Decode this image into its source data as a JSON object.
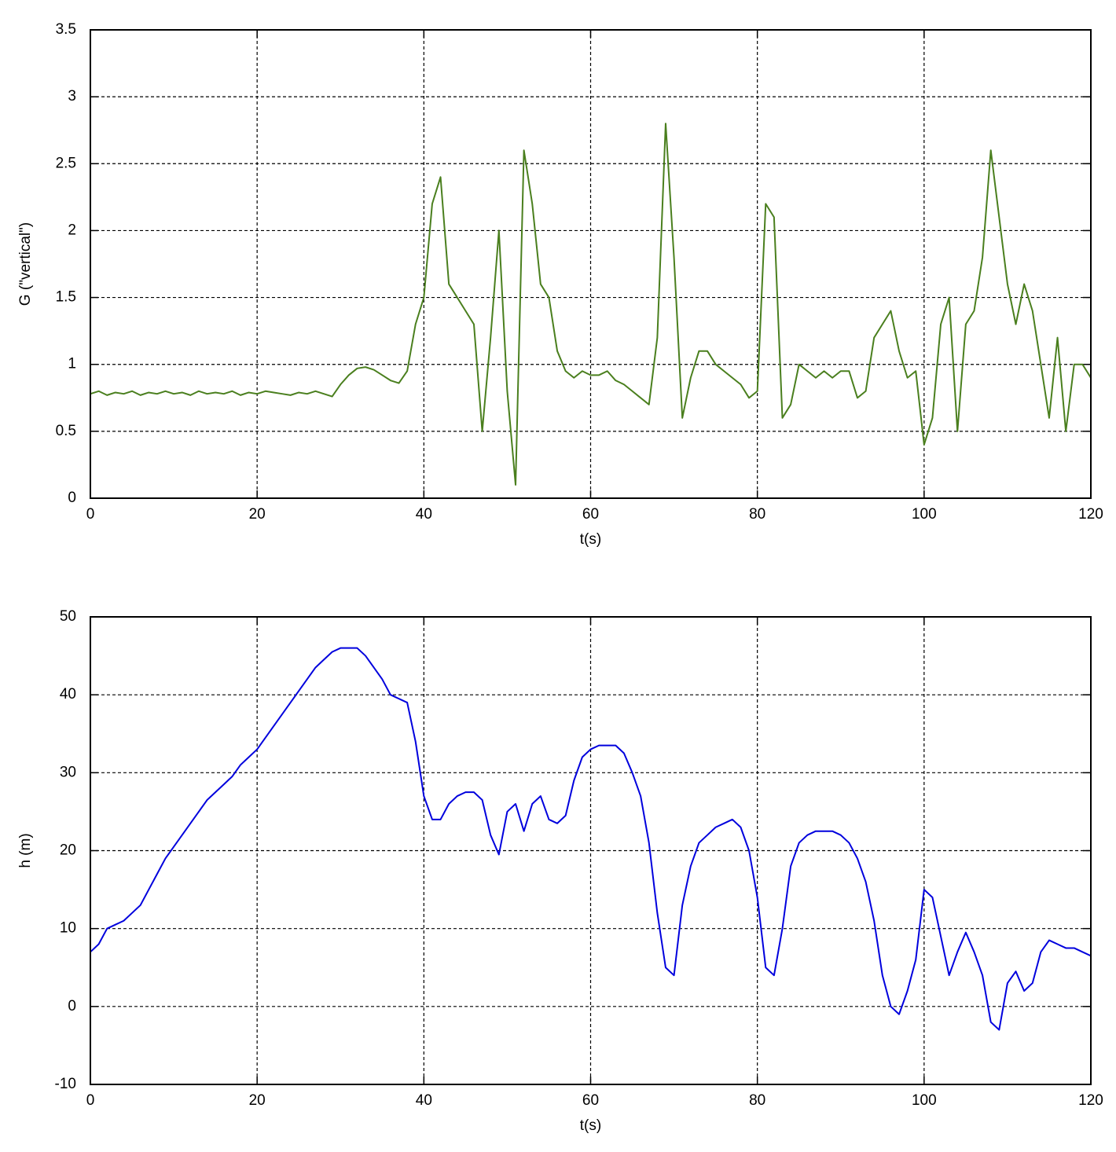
{
  "chart_data": [
    {
      "type": "line",
      "ylabel": "G (\"vertical\")",
      "xlabel": "t(s)",
      "x": [
        0,
        1,
        2,
        3,
        4,
        5,
        6,
        7,
        8,
        9,
        10,
        11,
        12,
        13,
        14,
        15,
        16,
        17,
        18,
        19,
        20,
        21,
        22,
        23,
        24,
        25,
        26,
        27,
        28,
        29,
        30,
        31,
        32,
        33,
        34,
        35,
        36,
        37,
        38,
        39,
        40,
        41,
        42,
        43,
        44,
        45,
        46,
        47,
        48,
        49,
        50,
        51,
        52,
        53,
        54,
        55,
        56,
        57,
        58,
        59,
        60,
        61,
        62,
        63,
        64,
        65,
        66,
        67,
        68,
        69,
        70,
        71,
        72,
        73,
        74,
        75,
        76,
        77,
        78,
        79,
        80,
        81,
        82,
        83,
        84,
        85,
        86,
        87,
        88,
        89,
        90,
        91,
        92,
        93,
        94,
        95,
        96,
        97,
        98,
        99,
        100,
        101,
        102,
        103,
        104,
        105,
        106,
        107,
        108,
        109,
        110,
        111,
        112,
        113,
        114,
        115,
        116,
        117,
        118,
        119,
        120
      ],
      "series": [
        {
          "color": "#4a7f1e",
          "values": [
            0.78,
            0.8,
            0.77,
            0.79,
            0.78,
            0.8,
            0.77,
            0.79,
            0.78,
            0.8,
            0.78,
            0.79,
            0.77,
            0.8,
            0.78,
            0.79,
            0.78,
            0.8,
            0.77,
            0.79,
            0.78,
            0.8,
            0.79,
            0.78,
            0.77,
            0.79,
            0.78,
            0.8,
            0.78,
            0.76,
            0.85,
            0.92,
            0.97,
            0.98,
            0.96,
            0.92,
            0.88,
            0.86,
            0.95,
            1.3,
            1.5,
            2.2,
            2.4,
            1.6,
            1.5,
            1.4,
            1.3,
            0.5,
            1.2,
            2.0,
            0.8,
            0.1,
            2.6,
            2.2,
            1.6,
            1.5,
            1.1,
            0.95,
            0.9,
            0.95,
            0.92,
            0.92,
            0.95,
            0.88,
            0.85,
            0.8,
            0.75,
            0.7,
            1.2,
            2.8,
            1.8,
            0.6,
            0.9,
            1.1,
            1.1,
            1.0,
            0.95,
            0.9,
            0.85,
            0.75,
            0.8,
            2.2,
            2.1,
            0.6,
            0.7,
            1.0,
            0.95,
            0.9,
            0.95,
            0.9,
            0.95,
            0.95,
            0.75,
            0.8,
            1.2,
            1.3,
            1.4,
            1.1,
            0.9,
            0.95,
            0.4,
            0.6,
            1.3,
            1.5,
            0.5,
            1.3,
            1.4,
            1.8,
            2.6,
            2.1,
            1.6,
            1.3,
            1.6,
            1.4,
            1.0,
            0.6,
            1.2,
            0.5,
            1.0,
            1.0,
            0.9
          ]
        }
      ],
      "xlim": [
        0,
        120
      ],
      "xticks": [
        0,
        20,
        40,
        60,
        80,
        100,
        120
      ],
      "ylim": [
        0,
        3.5
      ],
      "yticks": [
        0,
        0.5,
        1,
        1.5,
        2,
        2.5,
        3,
        3.5
      ],
      "grid": true
    },
    {
      "type": "line",
      "ylabel": "h (m)",
      "xlabel": "t(s)",
      "x": [
        0,
        1,
        2,
        3,
        4,
        5,
        6,
        7,
        8,
        9,
        10,
        11,
        12,
        13,
        14,
        15,
        16,
        17,
        18,
        19,
        20,
        21,
        22,
        23,
        24,
        25,
        26,
        27,
        28,
        29,
        30,
        31,
        32,
        33,
        34,
        35,
        36,
        37,
        38,
        39,
        40,
        41,
        42,
        43,
        44,
        45,
        46,
        47,
        48,
        49,
        50,
        51,
        52,
        53,
        54,
        55,
        56,
        57,
        58,
        59,
        60,
        61,
        62,
        63,
        64,
        65,
        66,
        67,
        68,
        69,
        70,
        71,
        72,
        73,
        74,
        75,
        76,
        77,
        78,
        79,
        80,
        81,
        82,
        83,
        84,
        85,
        86,
        87,
        88,
        89,
        90,
        91,
        92,
        93,
        94,
        95,
        96,
        97,
        98,
        99,
        100,
        101,
        102,
        103,
        104,
        105,
        106,
        107,
        108,
        109,
        110,
        111,
        112,
        113,
        114,
        115,
        116,
        117,
        118,
        119,
        120
      ],
      "series": [
        {
          "color": "#0000dd",
          "values": [
            7,
            8,
            10,
            10.5,
            11,
            12,
            13,
            15,
            17,
            19,
            20.5,
            22,
            23.5,
            25,
            26.5,
            27.5,
            28.5,
            29.5,
            31,
            32,
            33,
            34.5,
            36,
            37.5,
            39,
            40.5,
            42,
            43.5,
            44.5,
            45.5,
            46,
            46,
            46,
            45,
            43.5,
            42,
            40,
            39.5,
            39,
            34,
            27,
            24,
            24,
            26,
            27,
            27.5,
            27.5,
            26.5,
            22,
            19.5,
            25,
            26,
            22.5,
            26,
            27,
            24,
            23.5,
            24.5,
            29,
            32,
            33,
            33.5,
            33.5,
            33.5,
            32.5,
            30,
            27,
            21,
            12,
            5,
            4,
            13,
            18,
            21,
            22,
            23,
            23.5,
            24,
            23,
            20,
            14,
            5,
            4,
            10,
            18,
            21,
            22,
            22.5,
            22.5,
            22.5,
            22,
            21,
            19,
            16,
            11,
            4,
            0,
            -1,
            2,
            6,
            15,
            14,
            9,
            4,
            7,
            9.5,
            7,
            4,
            -2,
            -3,
            3,
            4.5,
            2,
            3,
            7,
            8.5,
            8,
            7.5,
            7.5,
            7,
            6.5
          ]
        }
      ],
      "xlim": [
        0,
        120
      ],
      "xticks": [
        0,
        20,
        40,
        60,
        80,
        100,
        120
      ],
      "ylim": [
        -10,
        50
      ],
      "yticks": [
        -10,
        0,
        10,
        20,
        30,
        40,
        50
      ],
      "grid": true
    }
  ]
}
